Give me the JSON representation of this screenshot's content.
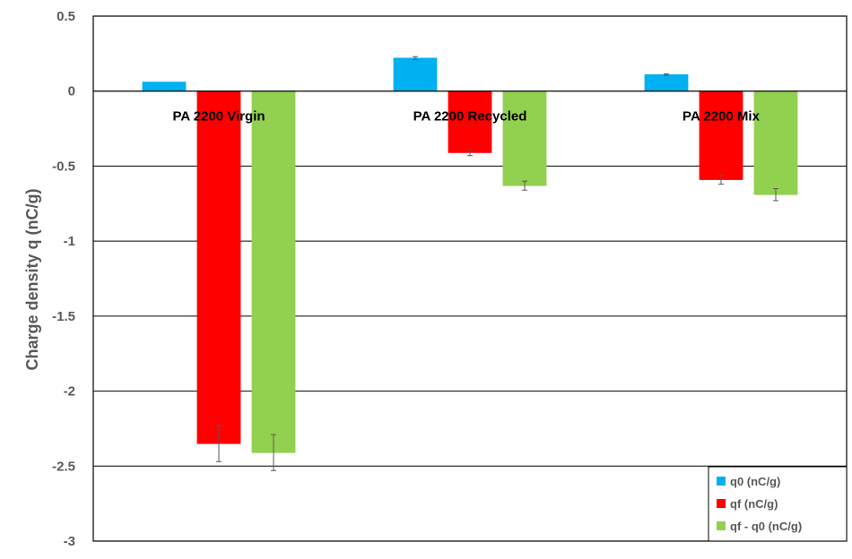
{
  "chart_data": {
    "type": "bar",
    "title": "",
    "xlabel": "",
    "ylabel": "Charge density q (nC/g)",
    "ylim": [
      -3,
      0.5
    ],
    "yticks": [
      0.5,
      0,
      -0.5,
      -1,
      -1.5,
      -2,
      -2.5,
      -3
    ],
    "grid": true,
    "legend_position": "bottom-right",
    "categories": [
      "PA 2200 Virgin",
      "PA 2200 Recycled",
      "PA 2200 Mix"
    ],
    "series": [
      {
        "name": "q0 (nC/g)",
        "color": "#00B0F0",
        "values": [
          0.06,
          0.22,
          0.11
        ],
        "errors": [
          0.0,
          0.01,
          0.005
        ]
      },
      {
        "name": "qf (nC/g)",
        "color": "#FF0000",
        "values": [
          -2.35,
          -0.41,
          -0.59
        ],
        "errors": [
          0.12,
          0.02,
          0.03
        ]
      },
      {
        "name": "qf - q0 (nC/g)",
        "color": "#92D050",
        "values": [
          -2.41,
          -0.63,
          -0.69
        ],
        "errors": [
          0.12,
          0.03,
          0.04
        ]
      }
    ]
  }
}
